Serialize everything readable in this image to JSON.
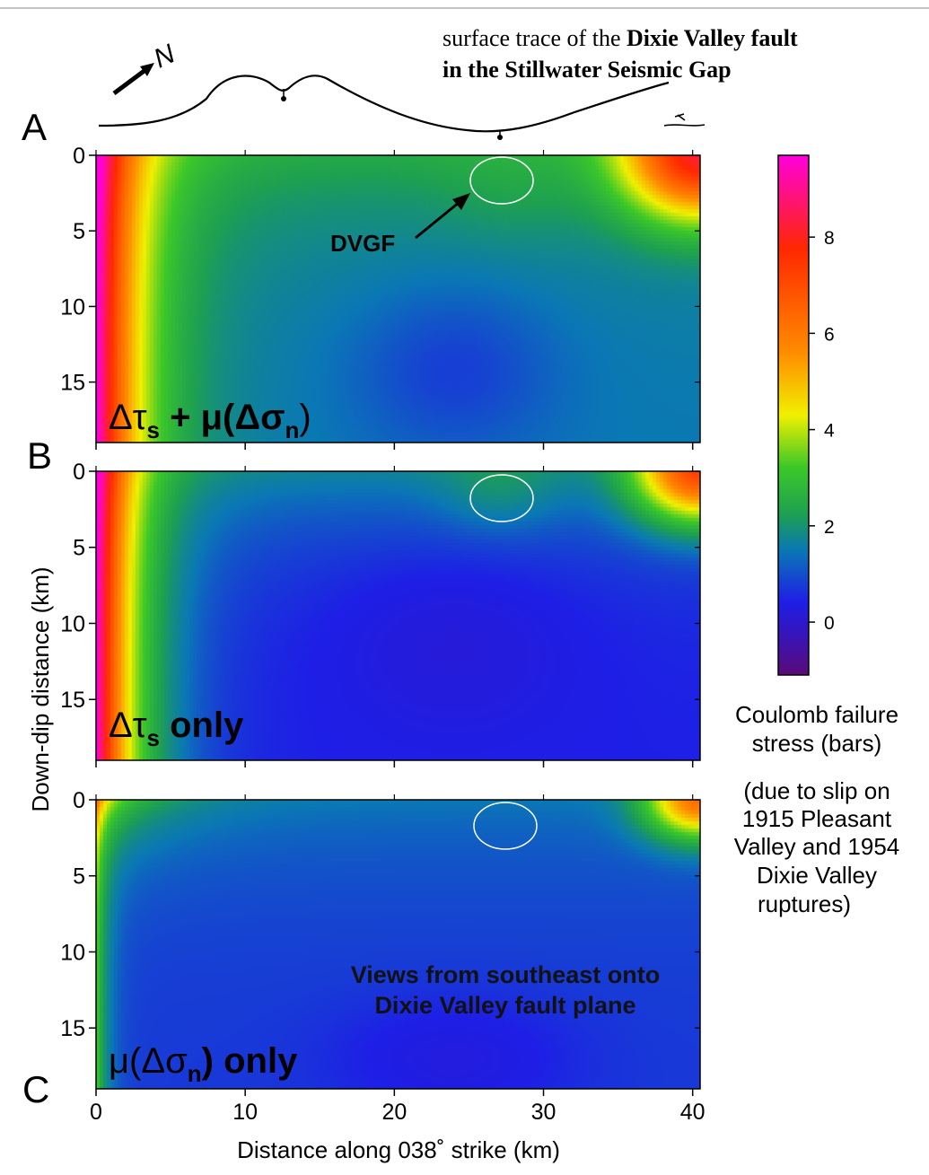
{
  "trace": {
    "title_prefix": "surface trace of the ",
    "title_bold1": "Dixie Valley fault",
    "title_line2": "in the Stillwater Seismic Gap",
    "north_label": "N"
  },
  "panel_letters": [
    "A",
    "B",
    "C"
  ],
  "panels": [
    {
      "id": "A",
      "main": "Δτ",
      "sub": "s",
      "rest": " + μ(Δσ",
      "sub2": "n",
      "end": ")"
    },
    {
      "id": "B",
      "main": "Δτ",
      "sub": "s",
      "rest": " only",
      "sub2": "",
      "end": ""
    },
    {
      "id": "C",
      "main": "μ(Δσ",
      "sub": "n",
      "rest": ") only",
      "sub2": "",
      "end": ""
    }
  ],
  "dvgf_label": "DVGF",
  "views_note": [
    "Views from southeast onto",
    "Dixie Valley fault plane"
  ],
  "colorbar": {
    "label_line1": "Coulomb failure",
    "label_line2": "stress (bars)",
    "note_lines": [
      "(due to slip on",
      "1915 Pleasant",
      "Valley and 1954",
      "Dixie Valley",
      "ruptures)"
    ],
    "ticks": [
      0,
      2,
      4,
      6,
      8
    ],
    "range": [
      -1.1,
      9.7
    ]
  },
  "chart_data": {
    "type": "heatmap",
    "xlabel": "Distance along 038˚ strike (km)",
    "ylabel": "Down-dip distance (km)",
    "xlim": [
      0,
      40.5
    ],
    "ylim": [
      19,
      0
    ],
    "xticks": [
      0,
      10,
      20,
      30,
      40
    ],
    "yticks": [
      0,
      5,
      10,
      15
    ],
    "colormap": [
      "#5a0a78",
      "#1e1ee6",
      "#0a78b4",
      "#1ea050",
      "#3cc828",
      "#f0f000",
      "#ff8c00",
      "#ff2800",
      "#ff00dc"
    ],
    "dvgf_ellipse": {
      "x_km": 27.2,
      "y_km": 1.8
    },
    "panels": [
      "Δτs + μ(Δσn)",
      "Δτs only",
      "μ(Δσn) only"
    ]
  }
}
